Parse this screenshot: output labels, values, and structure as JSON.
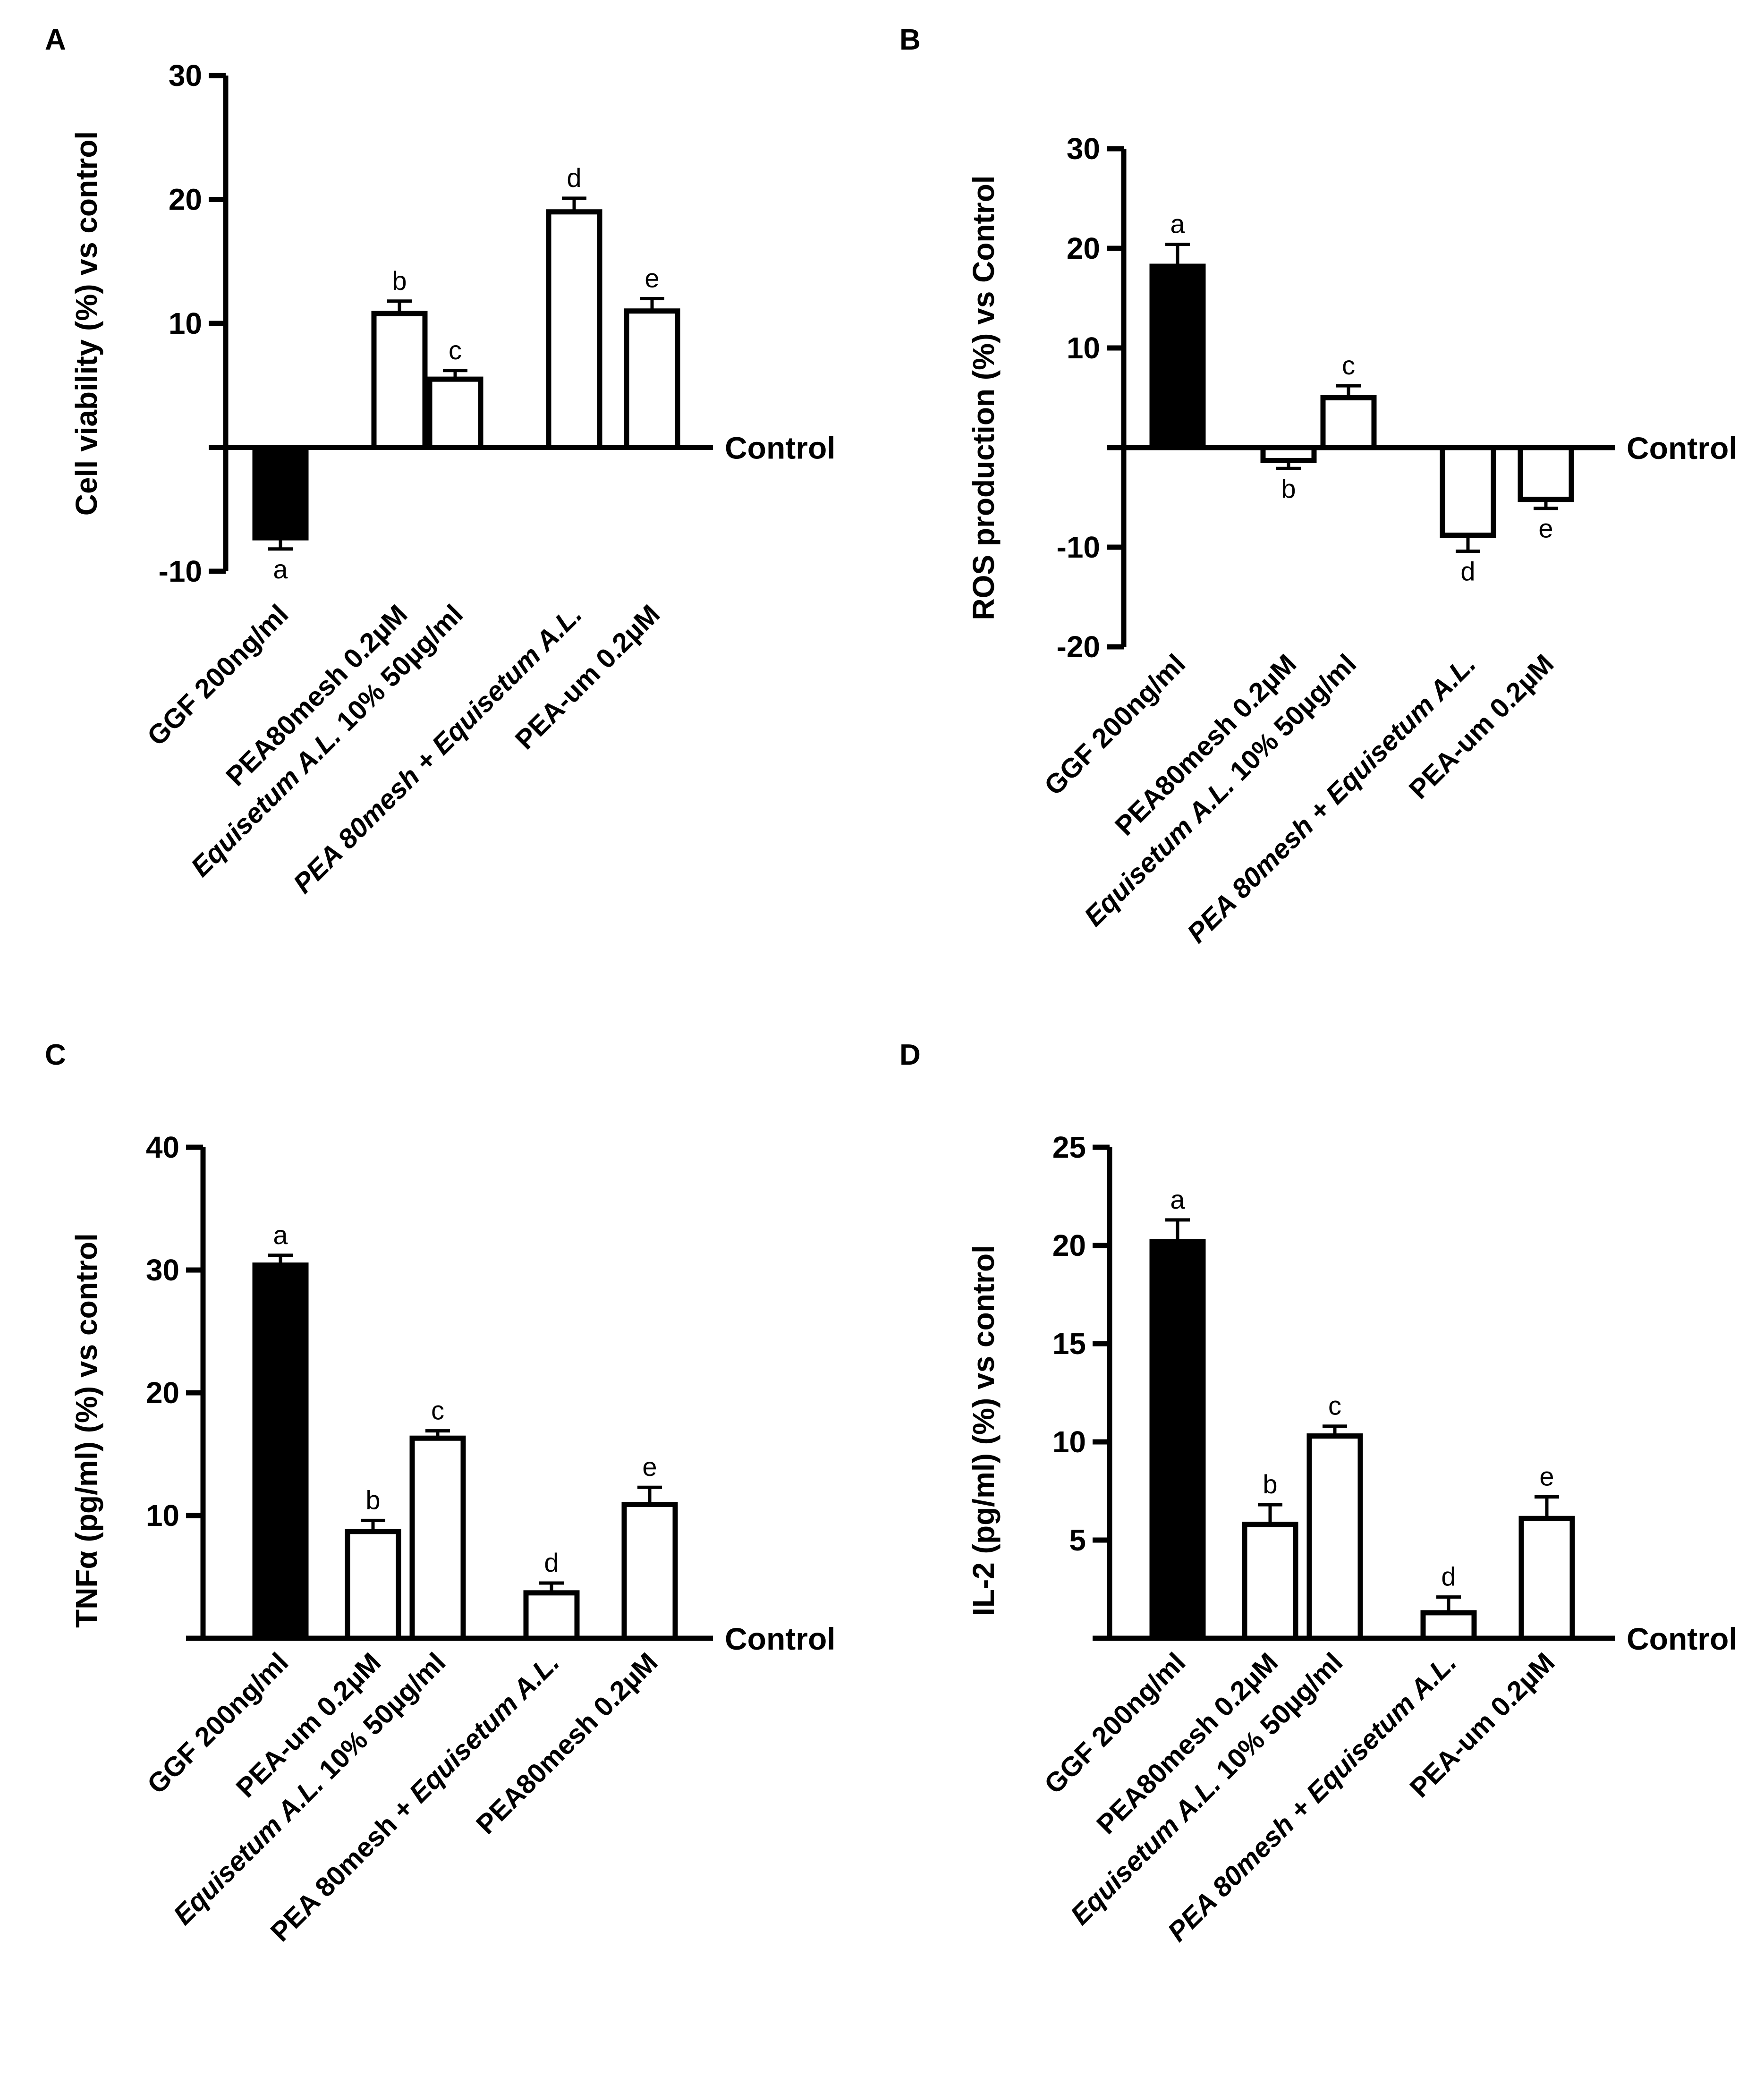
{
  "chart_data": [
    {
      "type": "bar",
      "panel_label": "A",
      "ylabel": "Cell viability (%) vs control",
      "baseline_label": "Control",
      "yticks": [
        {
          "value": 30,
          "label": "30"
        },
        {
          "value": 20,
          "label": "20"
        },
        {
          "value": 10,
          "label": "10"
        },
        {
          "value": -10,
          "label": "-10"
        }
      ],
      "ylim": [
        -10,
        30
      ],
      "bars": [
        {
          "category": "GGF 200ng/ml",
          "category_parts": [
            {
              "text": "GGF 200ng/ml",
              "italic": false
            }
          ],
          "value": -7.3,
          "error": 0.9,
          "letter": "a",
          "fill": "#000000"
        },
        {
          "category": "PEA80mesh 0.2µM",
          "category_parts": [
            {
              "text": "PEA80mesh 0.2µM",
              "italic": false
            }
          ],
          "value": 10.8,
          "error": 1.0,
          "letter": "b",
          "fill": "#ffffff"
        },
        {
          "category": "Equisetum A.L. 10% 50µg/ml",
          "category_parts": [
            {
              "text": "Equisetum A.L.",
              "italic": true
            },
            {
              "text": " 10% 50µg/ml",
              "italic": false
            }
          ],
          "value": 5.5,
          "error": 0.7,
          "letter": "c",
          "fill": "#ffffff"
        },
        {
          "category": "PEA 80mesh + Equisetum A.L.",
          "category_parts": [
            {
              "text": "PEA 80mesh + Equisetum A.L.",
              "italic": true
            }
          ],
          "value": 19.0,
          "error": 1.1,
          "letter": "d",
          "fill": "#ffffff"
        },
        {
          "category": "PEA-um 0.2µM",
          "category_parts": [
            {
              "text": "PEA-um 0.2µM",
              "italic": false
            }
          ],
          "value": 11.0,
          "error": 1.0,
          "letter": "e",
          "fill": "#ffffff"
        }
      ]
    },
    {
      "type": "bar",
      "panel_label": "B",
      "ylabel": "ROS production (%) vs Control",
      "baseline_label": "Control",
      "yticks": [
        {
          "value": 30,
          "label": "30"
        },
        {
          "value": 20,
          "label": "20"
        },
        {
          "value": 10,
          "label": "10"
        },
        {
          "value": -10,
          "label": "-10"
        },
        {
          "value": -20,
          "label": "-20"
        }
      ],
      "ylim": [
        -20,
        30
      ],
      "bars": [
        {
          "category": "GGF 200ng/ml",
          "category_parts": [
            {
              "text": "GGF 200ng/ml",
              "italic": false
            }
          ],
          "value": 18.2,
          "error": 2.2,
          "letter": "a",
          "fill": "#000000"
        },
        {
          "category": "PEA80mesh 0.2µM",
          "category_parts": [
            {
              "text": "PEA80mesh 0.2µM",
              "italic": false
            }
          ],
          "value": -1.3,
          "error": 0.8,
          "letter": "b",
          "fill": "#ffffff"
        },
        {
          "category": "Equisetum A.L. 10% 50µg/ml",
          "category_parts": [
            {
              "text": "Equisetum A.L.",
              "italic": true
            },
            {
              "text": " 10% 50µg/ml",
              "italic": false
            }
          ],
          "value": 5.0,
          "error": 1.2,
          "letter": "c",
          "fill": "#ffffff"
        },
        {
          "category": "PEA 80mesh + Equisetum A.L.",
          "category_parts": [
            {
              "text": "PEA 80mesh + Equisetum A.L.",
              "italic": true
            }
          ],
          "value": -8.8,
          "error": 1.6,
          "letter": "d",
          "fill": "#ffffff"
        },
        {
          "category": "PEA-um 0.2µM",
          "category_parts": [
            {
              "text": "PEA-um 0.2µM",
              "italic": false
            }
          ],
          "value": -5.2,
          "error": 0.9,
          "letter": "e",
          "fill": "#ffffff"
        }
      ]
    },
    {
      "type": "bar",
      "panel_label": "C",
      "ylabel": "TNFα (pg/ml) (%) vs control",
      "baseline_label": "Control",
      "yticks": [
        {
          "value": 40,
          "label": "40"
        },
        {
          "value": 30,
          "label": "30"
        },
        {
          "value": 20,
          "label": "20"
        },
        {
          "value": 10,
          "label": "10"
        }
      ],
      "ylim": [
        0,
        40
      ],
      "bars": [
        {
          "category": "GGF 200ng/ml",
          "category_parts": [
            {
              "text": "GGF 200ng/ml",
              "italic": false
            }
          ],
          "value": 30.4,
          "error": 0.8,
          "letter": "a",
          "fill": "#000000"
        },
        {
          "category": "PEA-um 0.2µM",
          "category_parts": [
            {
              "text": "PEA-um 0.2µM",
              "italic": false
            }
          ],
          "value": 8.7,
          "error": 0.9,
          "letter": "b",
          "fill": "#ffffff"
        },
        {
          "category": "Equisetum A.L. 10% 50µg/ml",
          "category_parts": [
            {
              "text": "Equisetum A.L.",
              "italic": true
            },
            {
              "text": " 10% 50µg/ml",
              "italic": false
            }
          ],
          "value": 16.3,
          "error": 0.6,
          "letter": "c",
          "fill": "#ffffff"
        },
        {
          "category": "PEA 80mesh + Equisetum A.L.",
          "category_parts": [
            {
              "text": "PEA 80mesh + ",
              "italic": false
            },
            {
              "text": "Equisetum A.L.",
              "italic": true
            }
          ],
          "value": 3.7,
          "error": 0.8,
          "letter": "d",
          "fill": "#ffffff"
        },
        {
          "category": "PEA80mesh 0.2µM",
          "category_parts": [
            {
              "text": "PEA80mesh 0.2µM",
              "italic": false
            }
          ],
          "value": 10.9,
          "error": 1.4,
          "letter": "e",
          "fill": "#ffffff"
        }
      ]
    },
    {
      "type": "bar",
      "panel_label": "D",
      "ylabel": "IL-2 (pg/ml) (%) vs control",
      "baseline_label": "Control",
      "yticks": [
        {
          "value": 25,
          "label": "25"
        },
        {
          "value": 20,
          "label": "20"
        },
        {
          "value": 15,
          "label": "15"
        },
        {
          "value": 10,
          "label": "10"
        },
        {
          "value": 5,
          "label": "5"
        }
      ],
      "ylim": [
        0,
        25
      ],
      "bars": [
        {
          "category": "GGF 200ng/ml",
          "category_parts": [
            {
              "text": "GGF 200ng/ml",
              "italic": false
            }
          ],
          "value": 20.2,
          "error": 1.1,
          "letter": "a",
          "fill": "#000000"
        },
        {
          "category": "PEA80mesh 0.2µM",
          "category_parts": [
            {
              "text": "PEA80mesh 0.2µM",
              "italic": false
            }
          ],
          "value": 5.8,
          "error": 1.0,
          "letter": "b",
          "fill": "#ffffff"
        },
        {
          "category": "Equisetum A.L. 10% 50µg/ml",
          "category_parts": [
            {
              "text": "Equisetum A.L.",
              "italic": true
            },
            {
              "text": " 10% 50µg/ml",
              "italic": false
            }
          ],
          "value": 10.3,
          "error": 0.5,
          "letter": "c",
          "fill": "#ffffff"
        },
        {
          "category": "PEA 80mesh + Equisetum A.L.",
          "category_parts": [
            {
              "text": "PEA 80mesh + ",
              "italic": true
            },
            {
              "text": "Equisetum A.L.",
              "italic": true
            }
          ],
          "value": 1.3,
          "error": 0.8,
          "letter": "d",
          "fill": "#ffffff"
        },
        {
          "category": "PEA-um 0.2µM",
          "category_parts": [
            {
              "text": "PEA-um 0.2µM",
              "italic": false
            }
          ],
          "value": 6.1,
          "error": 1.1,
          "letter": "e",
          "fill": "#ffffff"
        }
      ]
    }
  ]
}
